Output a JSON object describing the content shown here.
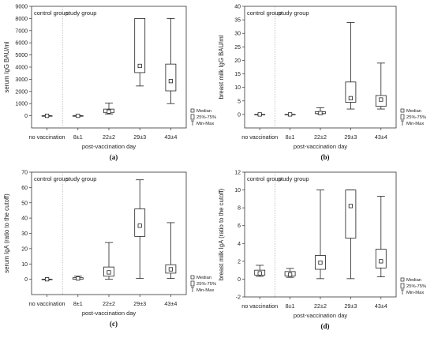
{
  "chart_data": [
    {
      "type": "box",
      "panel_label": "(a)",
      "ylabel": "serum IgG BAU/ml",
      "xlabel": "post-vaccination day",
      "categories": [
        "no vaccination",
        "8±1",
        "22±2",
        "29±3",
        "43±4"
      ],
      "group_labels": [
        "control group",
        "study group"
      ],
      "ylim": [
        -1000,
        9000
      ],
      "yticks": [
        0,
        1000,
        2000,
        3000,
        4000,
        5000,
        6000,
        7000,
        8000,
        9000
      ],
      "boxes": [
        {
          "min": 0,
          "q1": 0,
          "median": 0,
          "q3": 0,
          "max": 0
        },
        {
          "min": 0,
          "q1": 0,
          "median": 0,
          "q3": 0,
          "max": 0
        },
        {
          "min": 150,
          "q1": 250,
          "median": 350,
          "q3": 550,
          "max": 1050
        },
        {
          "min": 2450,
          "q1": 3550,
          "median": 4100,
          "q3": 8000,
          "max": 8000
        },
        {
          "min": 1000,
          "q1": 2050,
          "median": 2850,
          "q3": 4250,
          "max": 8000
        }
      ],
      "legend": [
        "Median",
        "25%-75%",
        "Min-Max"
      ],
      "legend_position": "right"
    },
    {
      "type": "box",
      "panel_label": "(b)",
      "ylabel": "breast milk IgG BAU/ml",
      "xlabel": "post-vaccination day",
      "categories": [
        "no vaccination",
        "8±1",
        "22±2",
        "29±3",
        "43±4"
      ],
      "group_labels": [
        "control group",
        "study group"
      ],
      "ylim": [
        -5,
        40
      ],
      "yticks": [
        0,
        5,
        10,
        15,
        20,
        25,
        30,
        35,
        40
      ],
      "boxes": [
        {
          "min": 0,
          "q1": 0,
          "median": 0,
          "q3": 0,
          "max": 0
        },
        {
          "min": 0,
          "q1": 0,
          "median": 0,
          "q3": 0,
          "max": 0
        },
        {
          "min": 0.2,
          "q1": 0.3,
          "median": 0.5,
          "q3": 1.0,
          "max": 2.5
        },
        {
          "min": 2,
          "q1": 4.5,
          "median": 6,
          "q3": 12,
          "max": 34
        },
        {
          "min": 2,
          "q1": 3,
          "median": 5.5,
          "q3": 7,
          "max": 19
        }
      ],
      "legend": [
        "Median",
        "25%-75%",
        "Min-Max"
      ],
      "legend_position": "right"
    },
    {
      "type": "box",
      "panel_label": "(c)",
      "ylabel": "serum IgA (ratio to the cutoff)",
      "xlabel": "post-vaccination day",
      "categories": [
        "no vaccination",
        "8±1",
        "22±2",
        "29±3",
        "43±4"
      ],
      "group_labels": [
        "control group",
        "study group"
      ],
      "ylim": [
        -10,
        70
      ],
      "yticks": [
        0,
        10,
        20,
        30,
        40,
        50,
        60,
        70
      ],
      "boxes": [
        {
          "min": 0,
          "q1": 0,
          "median": 0,
          "q3": 0,
          "max": 0
        },
        {
          "min": 0,
          "q1": 0,
          "median": 0.5,
          "q3": 1,
          "max": 2
        },
        {
          "min": 0,
          "q1": 2,
          "median": 4.5,
          "q3": 8,
          "max": 24
        },
        {
          "min": 0.5,
          "q1": 28,
          "median": 35,
          "q3": 46,
          "max": 65
        },
        {
          "min": 0.5,
          "q1": 4,
          "median": 6.5,
          "q3": 9.5,
          "max": 37
        }
      ],
      "legend": [
        "Median",
        "25%-75%",
        "Min-Max"
      ],
      "legend_position": "right"
    },
    {
      "type": "box",
      "panel_label": "(d)",
      "ylabel": "breast milk IgA (ratio to the cutoff)",
      "xlabel": "post-vaccination day",
      "categories": [
        "no vaccination",
        "8±1",
        "22±2",
        "29±3",
        "43±4"
      ],
      "group_labels": [
        "control group",
        "study group"
      ],
      "ylim": [
        -2,
        12
      ],
      "yticks": [
        -2,
        0,
        2,
        4,
        6,
        8,
        10,
        12
      ],
      "boxes": [
        {
          "min": 0.3,
          "q1": 0.45,
          "median": 0.65,
          "q3": 1.0,
          "max": 1.55
        },
        {
          "min": 0.2,
          "q1": 0.35,
          "median": 0.5,
          "q3": 0.85,
          "max": 1.2
        },
        {
          "min": 0.05,
          "q1": 1.1,
          "median": 1.85,
          "q3": 2.65,
          "max": 10
        },
        {
          "min": 0.05,
          "q1": 4.6,
          "median": 8.2,
          "q3": 10,
          "max": 10
        },
        {
          "min": 0.25,
          "q1": 1.25,
          "median": 2.0,
          "q3": 3.35,
          "max": 9.3
        }
      ],
      "legend": [
        "Median",
        "25%-75%",
        "Min-Max"
      ],
      "legend_position": "right"
    }
  ]
}
